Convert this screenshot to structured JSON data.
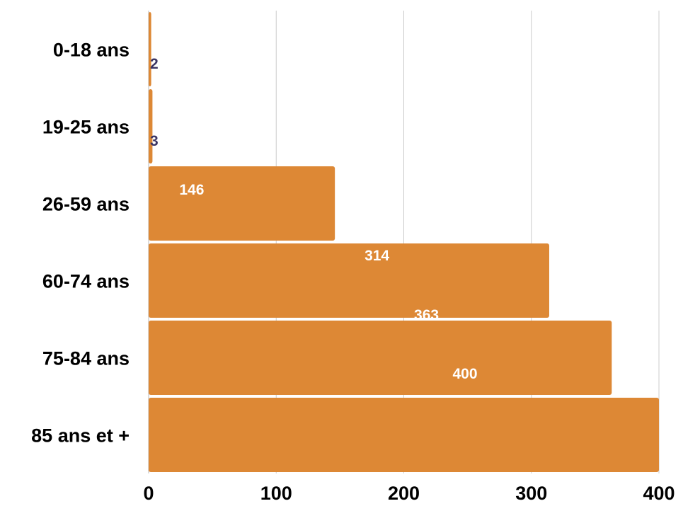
{
  "chart_data": {
    "type": "bar",
    "orientation": "horizontal",
    "categories": [
      "0-18 ans",
      "19-25 ans",
      "26-59 ans",
      "60-74 ans",
      "75-84 ans",
      "85 ans et +"
    ],
    "values": [
      2,
      3,
      146,
      314,
      363,
      400
    ],
    "xlim": [
      0,
      400
    ],
    "xticks": [
      0,
      100,
      200,
      300,
      400
    ],
    "grid": true,
    "legend": "none",
    "title": "",
    "xlabel": "",
    "ylabel": ""
  },
  "colors": {
    "bar": "#dd8835",
    "grid": "#cccccc",
    "label_dark": "#3b3564",
    "label_light": "#ffffff"
  }
}
